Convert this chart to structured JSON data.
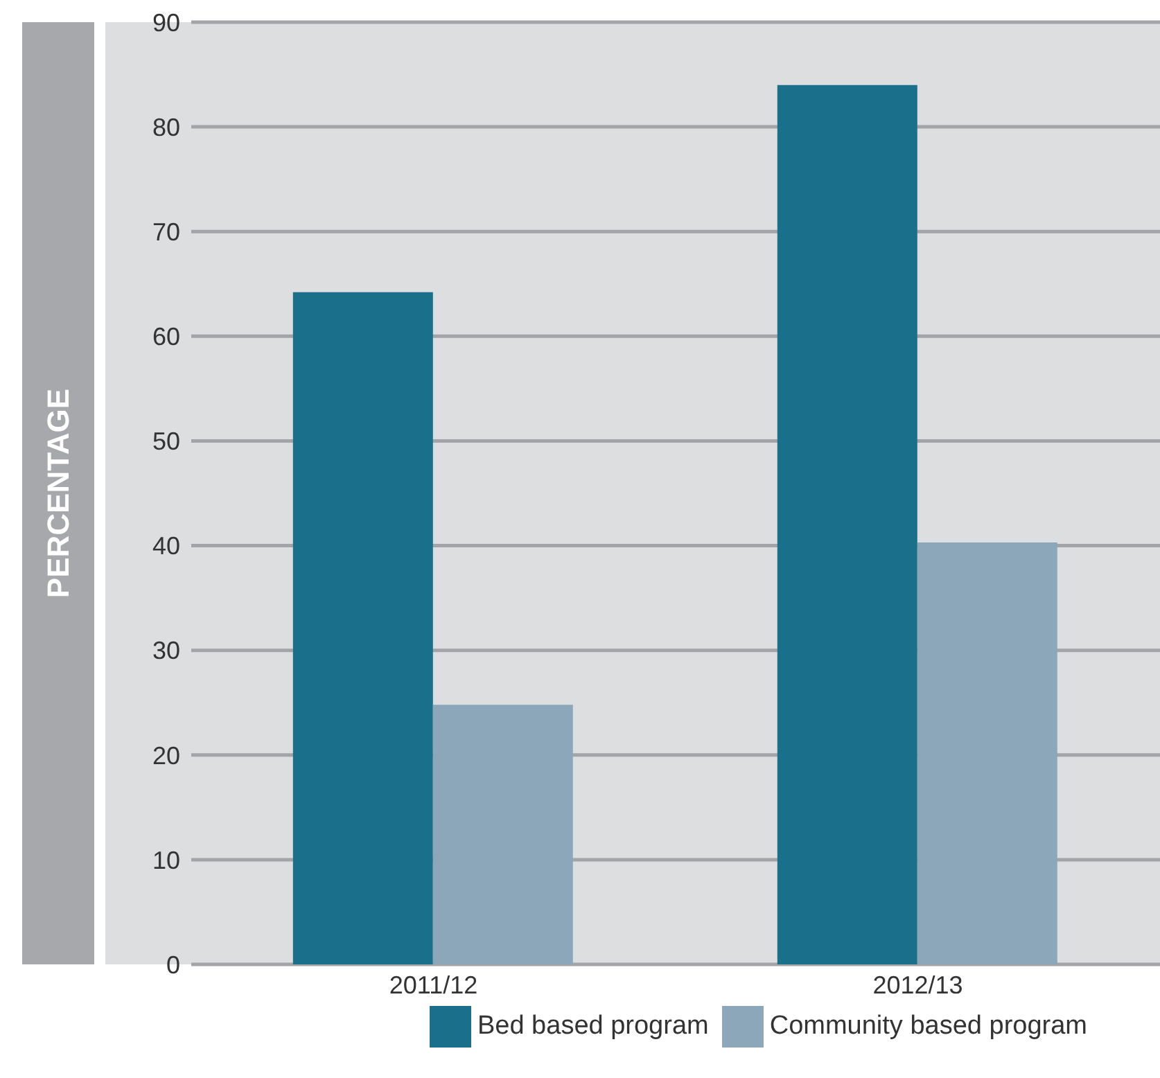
{
  "chart_data": {
    "type": "bar",
    "ylabel": "PERCENTAGE",
    "categories": [
      "2011/12",
      "2012/13"
    ],
    "series": [
      {
        "name": "Bed based program",
        "color": "#1a708a",
        "values": [
          64.2,
          84
        ]
      },
      {
        "name": "Community based program",
        "color": "#8ca7ba",
        "values": [
          24.8,
          40.3
        ]
      }
    ],
    "ylim": [
      0,
      90
    ],
    "yticks": [
      0,
      10,
      20,
      30,
      40,
      50,
      60,
      70,
      80,
      90
    ],
    "grid": "y",
    "legend": "bottom"
  }
}
